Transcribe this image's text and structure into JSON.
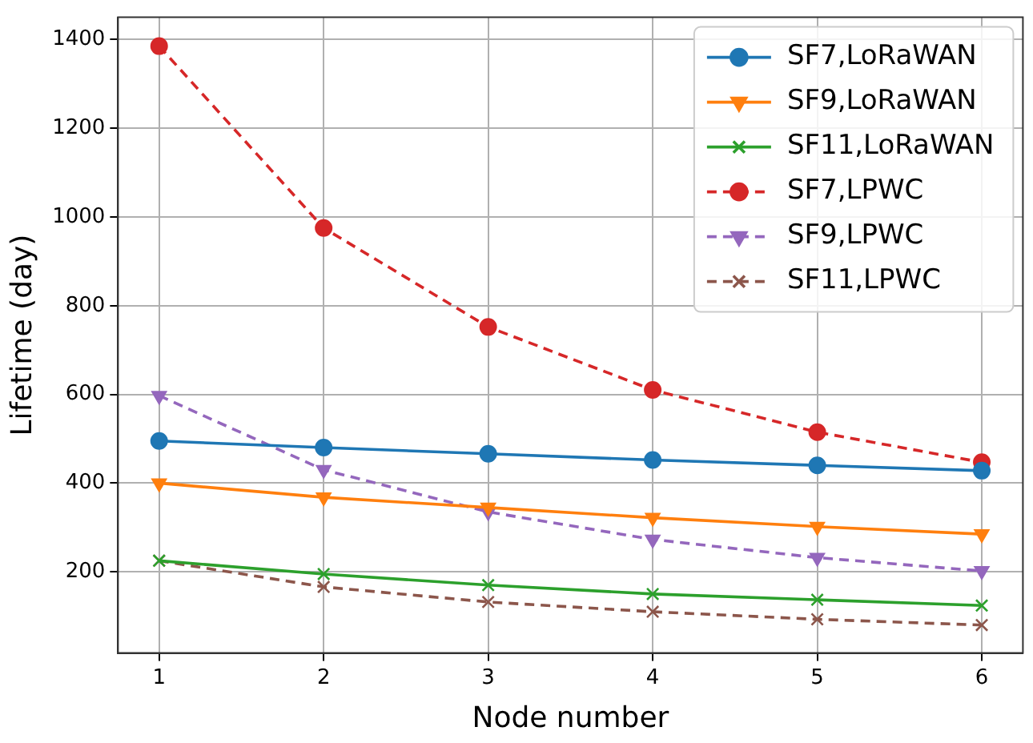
{
  "chart_data": {
    "type": "line",
    "xlabel": "Node number",
    "ylabel": "Lifetime (day)",
    "x": [
      1,
      2,
      3,
      4,
      5,
      6
    ],
    "series": [
      {
        "name": "SF7,LoRaWAN",
        "color": "#1f77b4",
        "marker": "circle",
        "line_style": "solid",
        "values": [
          495,
          480,
          466,
          452,
          440,
          428
        ]
      },
      {
        "name": "SF9,LoRaWAN",
        "color": "#ff7f0e",
        "marker": "triangle",
        "line_style": "solid",
        "values": [
          400,
          368,
          345,
          322,
          302,
          285
        ]
      },
      {
        "name": "SF11,LoRaWAN",
        "color": "#2ca02c",
        "marker": "cross",
        "line_style": "solid",
        "values": [
          225,
          195,
          170,
          150,
          137,
          124
        ]
      },
      {
        "name": "SF7,LPWC",
        "color": "#d62728",
        "marker": "circle",
        "line_style": "dashed",
        "values": [
          1385,
          975,
          752,
          610,
          515,
          447
        ]
      },
      {
        "name": "SF9,LPWC",
        "color": "#9467bd",
        "marker": "triangle",
        "line_style": "dashed",
        "values": [
          597,
          430,
          335,
          273,
          232,
          202
        ]
      },
      {
        "name": "SF11,LPWC",
        "color": "#8c564b",
        "marker": "cross",
        "line_style": "dashed",
        "values": [
          225,
          166,
          132,
          110,
          93,
          80
        ]
      }
    ],
    "xlim": [
      0.75,
      6.25
    ],
    "xticks": [
      1,
      2,
      3,
      4,
      5,
      6
    ],
    "ylim": [
      17,
      1450
    ],
    "yticks": [
      200,
      400,
      600,
      800,
      1000,
      1200,
      1400
    ],
    "grid": true,
    "legend": "top right"
  }
}
